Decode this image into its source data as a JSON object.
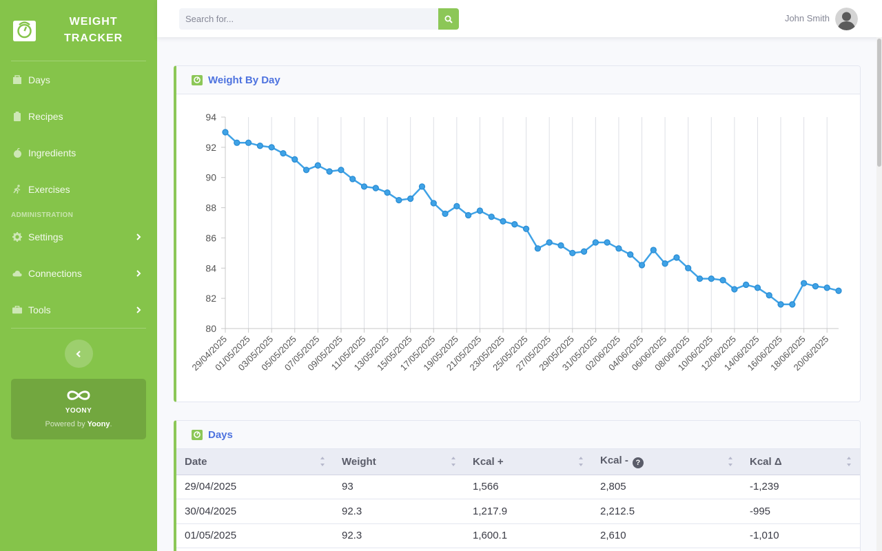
{
  "sidebar": {
    "brand": {
      "line1": "WEIGHT",
      "line2": "TRACKER"
    },
    "items": [
      {
        "label": "Days",
        "icon": "bag-icon"
      },
      {
        "label": "Recipes",
        "icon": "clipboard-icon"
      },
      {
        "label": "Ingredients",
        "icon": "apple-icon"
      },
      {
        "label": "Exercises",
        "icon": "running-icon"
      }
    ],
    "admin_heading": "ADMINISTRATION",
    "admin_items": [
      {
        "label": "Settings",
        "icon": "gear-icon"
      },
      {
        "label": "Connections",
        "icon": "cloud-icon"
      },
      {
        "label": "Tools",
        "icon": "toolbox-icon"
      }
    ],
    "promo": {
      "logo": "YOONY",
      "powered_prefix": "Powered by ",
      "powered_name": "Yoony",
      "powered_suffix": "."
    }
  },
  "topbar": {
    "search_placeholder": "Search for...",
    "user_name": "John Smith"
  },
  "chart_card": {
    "title": "Weight By Day"
  },
  "table_card": {
    "title": "Days",
    "columns": [
      "Date",
      "Weight",
      "Kcal +",
      "Kcal -",
      "Kcal Δ"
    ],
    "rows": [
      [
        "29/04/2025",
        "93",
        "1,566",
        "2,805",
        "-1,239"
      ],
      [
        "30/04/2025",
        "92.3",
        "1,217.9",
        "2,212.5",
        "-995"
      ],
      [
        "01/05/2025",
        "92.3",
        "1,600.1",
        "2,610",
        "-1,010"
      ]
    ]
  },
  "colors": {
    "sidebar": "#85c44a",
    "accent": "#8cc757",
    "title": "#4e73df",
    "line": "#3fa2e6"
  },
  "chart_data": {
    "type": "line",
    "title": "",
    "xlabel": "",
    "ylabel": "",
    "ylim": [
      80,
      94
    ],
    "yticks": [
      80,
      82,
      84,
      86,
      88,
      90,
      92,
      94
    ],
    "grid": "vertical",
    "x_tick_labels": [
      "29/04/2025",
      "01/05/2025",
      "03/05/2025",
      "05/05/2025",
      "07/05/2025",
      "09/05/2025",
      "11/05/2025",
      "13/05/2025",
      "15/05/2025",
      "17/05/2025",
      "19/05/2025",
      "21/05/2025",
      "23/05/2025",
      "25/05/2025",
      "27/05/2025",
      "29/05/2025",
      "31/05/2025",
      "02/06/2025",
      "04/06/2025",
      "06/06/2025",
      "08/06/2025",
      "10/06/2025",
      "12/06/2025",
      "14/06/2025",
      "16/06/2025",
      "18/06/2025",
      "20/06/2025"
    ],
    "x": [
      "29/04/2025",
      "30/04/2025",
      "01/05/2025",
      "02/05/2025",
      "03/05/2025",
      "04/05/2025",
      "05/05/2025",
      "06/05/2025",
      "07/05/2025",
      "08/05/2025",
      "09/05/2025",
      "10/05/2025",
      "11/05/2025",
      "12/05/2025",
      "13/05/2025",
      "14/05/2025",
      "15/05/2025",
      "16/05/2025",
      "17/05/2025",
      "18/05/2025",
      "19/05/2025",
      "20/05/2025",
      "21/05/2025",
      "22/05/2025",
      "23/05/2025",
      "24/05/2025",
      "25/05/2025",
      "26/05/2025",
      "27/05/2025",
      "28/05/2025",
      "29/05/2025",
      "30/05/2025",
      "31/05/2025",
      "01/06/2025",
      "02/06/2025",
      "03/06/2025",
      "04/06/2025",
      "05/06/2025",
      "06/06/2025",
      "07/06/2025",
      "08/06/2025",
      "09/06/2025",
      "10/06/2025",
      "11/06/2025",
      "12/06/2025",
      "13/06/2025",
      "14/06/2025",
      "15/06/2025",
      "16/06/2025",
      "17/06/2025",
      "18/06/2025",
      "19/06/2025",
      "20/06/2025",
      "21/06/2025"
    ],
    "series": [
      {
        "values": [
          93.0,
          92.3,
          92.3,
          92.1,
          92.0,
          91.6,
          91.2,
          90.5,
          90.8,
          90.4,
          90.5,
          89.9,
          89.4,
          89.3,
          89.0,
          88.5,
          88.6,
          89.4,
          88.3,
          87.6,
          88.1,
          87.5,
          87.8,
          87.4,
          87.1,
          86.9,
          86.6,
          85.3,
          85.7,
          85.5,
          85.0,
          85.1,
          85.7,
          85.7,
          85.3,
          84.9,
          84.2,
          85.2,
          84.3,
          84.7,
          84.0,
          83.3,
          83.3,
          83.2,
          82.6,
          82.9,
          82.7,
          82.2,
          81.6,
          81.6,
          83.0,
          82.8,
          82.7,
          82.5
        ]
      }
    ]
  }
}
